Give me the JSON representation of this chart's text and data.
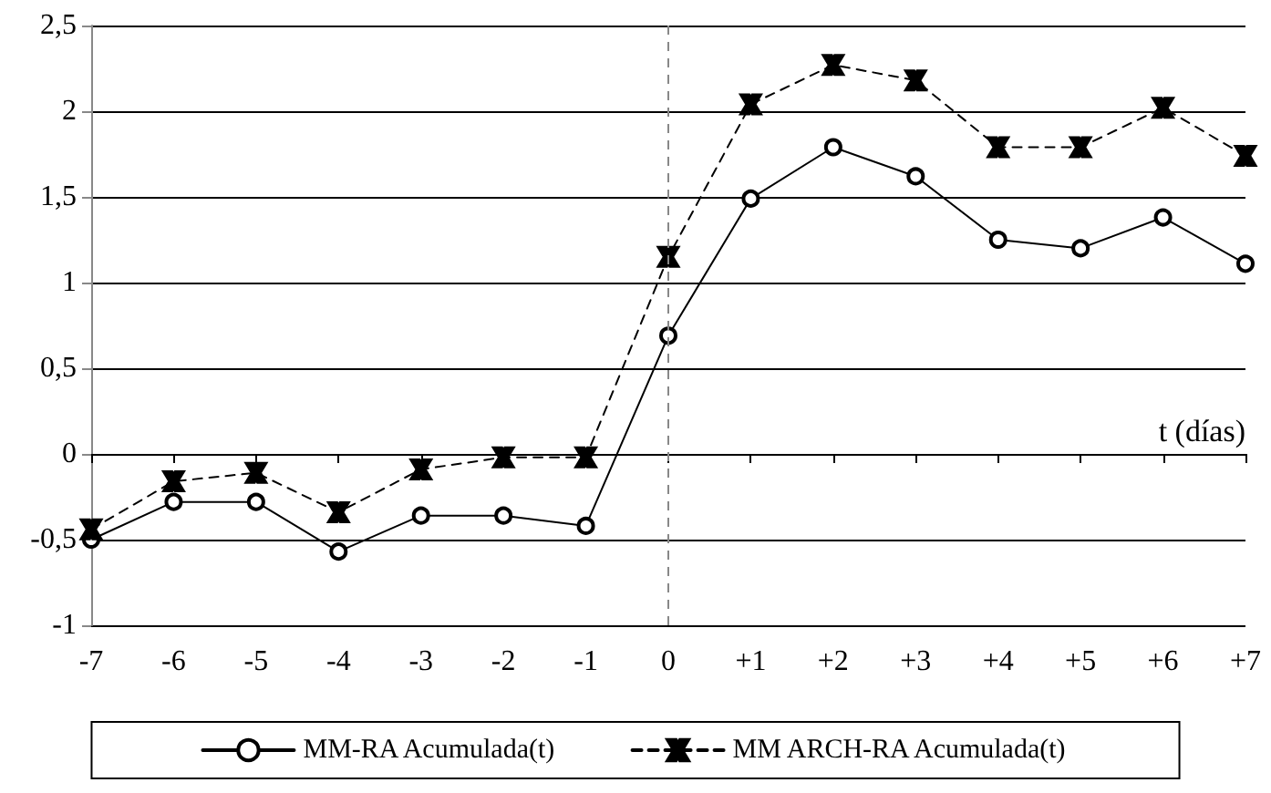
{
  "chart_data": {
    "type": "line",
    "xlabel": "t (días)",
    "categories": [
      "-7",
      "-6",
      "-5",
      "-4",
      "-3",
      "-2",
      "-1",
      "0",
      "+1",
      "+2",
      "+3",
      "+4",
      "+5",
      "+6",
      "+7"
    ],
    "series": [
      {
        "name": "MM-RA Acumulada(t)",
        "color": "#000000",
        "marker": "circle",
        "line_style": "solid",
        "values": [
          -0.5,
          -0.28,
          -0.28,
          -0.57,
          -0.36,
          -0.36,
          -0.42,
          0.69,
          1.49,
          1.79,
          1.62,
          1.25,
          1.2,
          1.38,
          1.11
        ]
      },
      {
        "name": "MM ARCH-RA Acumulada(t)",
        "color": "#000000",
        "marker": "cross",
        "line_style": "dashed",
        "values": [
          -0.44,
          -0.16,
          -0.11,
          -0.34,
          -0.09,
          -0.02,
          -0.02,
          1.15,
          2.04,
          2.27,
          2.18,
          1.79,
          1.79,
          2.02,
          1.74
        ]
      }
    ],
    "ylim": [
      -1,
      2.5
    ],
    "yticks": [
      -1,
      {
        "value": -0.5,
        "label": "-0,5"
      },
      0,
      {
        "value": 0.5,
        "label": "0,5"
      },
      1,
      {
        "value": 1.5,
        "label": "1,5"
      },
      2,
      {
        "value": 2.5,
        "label": "2,5"
      }
    ],
    "ref_lines": [
      {
        "axis": "x",
        "value": "0",
        "color": "#888888",
        "line_style": "dashed"
      }
    ],
    "grid": "y",
    "legend": "bottom"
  }
}
